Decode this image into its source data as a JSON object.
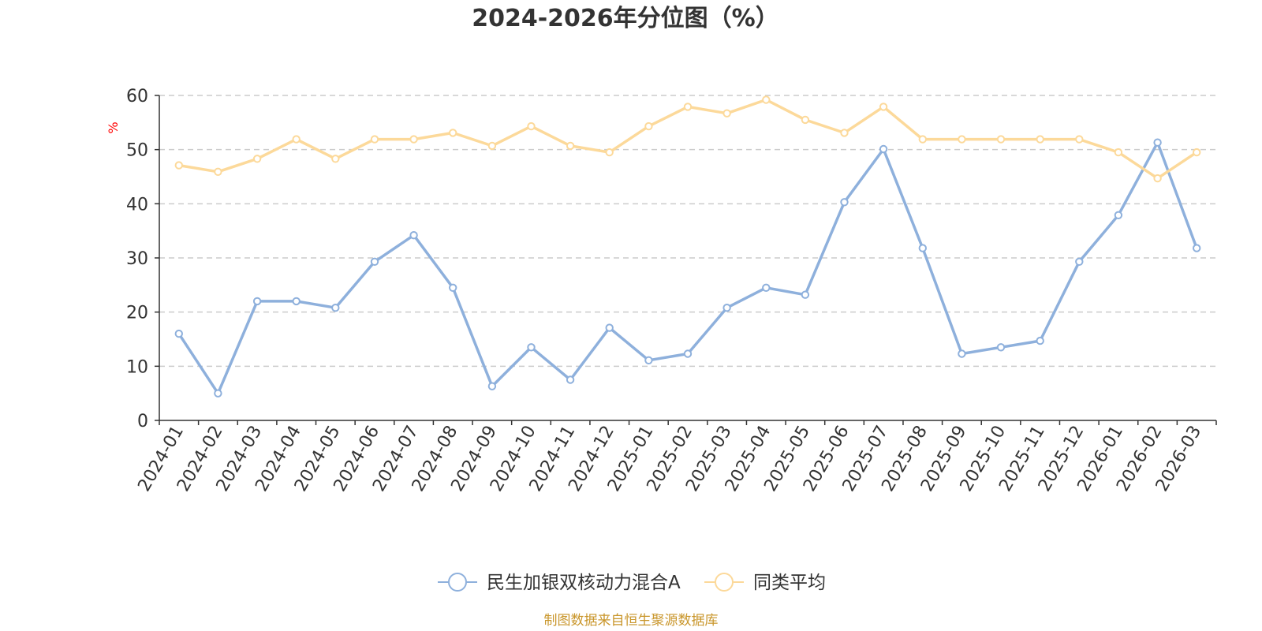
{
  "chart_data": {
    "type": "line",
    "title": "2024-2026年分位图（%）",
    "ylabel": "%",
    "xlabel": "",
    "ylim": [
      0,
      60
    ],
    "yticks": [
      0,
      10,
      20,
      30,
      40,
      50,
      60
    ],
    "grid": true,
    "legend_position": "bottom",
    "categories": [
      "2024-01",
      "2024-02",
      "2024-03",
      "2024-04",
      "2024-05",
      "2024-06",
      "2024-07",
      "2024-08",
      "2024-09",
      "2024-10",
      "2024-11",
      "2024-12",
      "2025-01",
      "2025-02",
      "2025-03",
      "2025-04",
      "2025-05",
      "2025-06",
      "2025-07",
      "2025-08",
      "2025-09",
      "2025-10",
      "2025-11",
      "2025-12",
      "2026-01",
      "2026-02",
      "2026-03"
    ],
    "series": [
      {
        "name": "民生加银双核动力混合A",
        "color": "#8eb0dc",
        "values": [
          16,
          5,
          22,
          22,
          20.8,
          29.3,
          34.2,
          24.5,
          6.3,
          13.5,
          7.5,
          17.1,
          11.1,
          12.3,
          20.8,
          24.5,
          23.2,
          40.3,
          50.1,
          31.8,
          12.3,
          13.5,
          14.7,
          29.3,
          37.9,
          51.3,
          31.8
        ]
      },
      {
        "name": "同类平均",
        "color": "#fcd99a",
        "values": [
          47.1,
          45.9,
          48.3,
          51.9,
          48.3,
          51.9,
          51.9,
          53.1,
          50.7,
          54.3,
          50.7,
          49.5,
          54.3,
          57.9,
          56.7,
          59.2,
          55.5,
          53.1,
          57.9,
          51.9,
          51.9,
          51.9,
          51.9,
          51.9,
          49.5,
          44.7,
          49.5
        ]
      }
    ]
  },
  "source_note": "制图数据来自恒生聚源数据库"
}
